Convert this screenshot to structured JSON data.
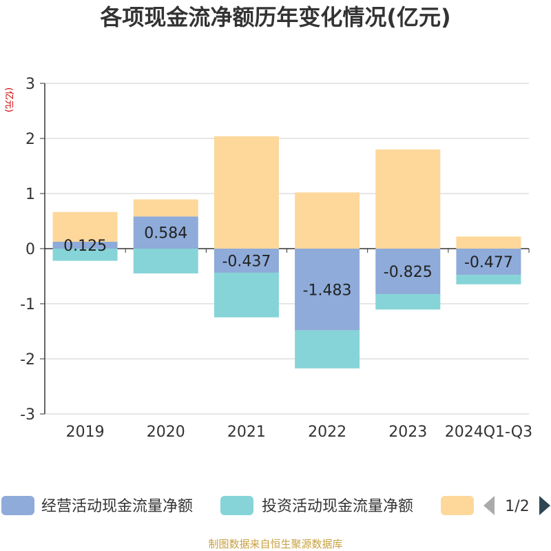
{
  "chart_data": {
    "type": "bar",
    "stacked": true,
    "title": "各项现金流净额历年变化情况(亿元)",
    "ylabel": "(亿元)",
    "xlabel": "",
    "categories": [
      "2019",
      "2020",
      "2021",
      "2022",
      "2023",
      "2024Q1-Q3"
    ],
    "ylim": [
      -3,
      3
    ],
    "yticks": [
      3,
      2,
      1,
      0,
      -1,
      -2,
      -3
    ],
    "grid": true,
    "legend_position": "bottom",
    "series": [
      {
        "name": "经营活动现金流量净额",
        "color": "#8eabd9",
        "values": [
          0.125,
          0.584,
          -0.437,
          -1.483,
          -0.825,
          -0.477
        ],
        "labels": [
          "0.125",
          "0.584",
          "-0.437",
          "-1.483",
          "-0.825",
          "-0.477"
        ]
      },
      {
        "name": "投资活动现金流量净额",
        "color": "#86d4d8",
        "values": [
          -0.22,
          -0.45,
          -0.81,
          -0.69,
          -0.28,
          -0.17
        ]
      },
      {
        "name": "",
        "color": "#fdd89a",
        "values": [
          0.54,
          0.31,
          2.04,
          1.02,
          1.8,
          0.22
        ]
      }
    ]
  },
  "legend": {
    "items": [
      {
        "label": "经营活动现金流量净额",
        "color": "#8eabd9"
      },
      {
        "label": "投资活动现金流量净额",
        "color": "#86d4d8"
      },
      {
        "label": "",
        "color": "#fdd89a"
      }
    ],
    "page_indicator": "1/2",
    "prev_icon": "triangle-left-icon",
    "next_icon": "triangle-right-icon"
  },
  "source": "制图数据来自恒生聚源数据库"
}
